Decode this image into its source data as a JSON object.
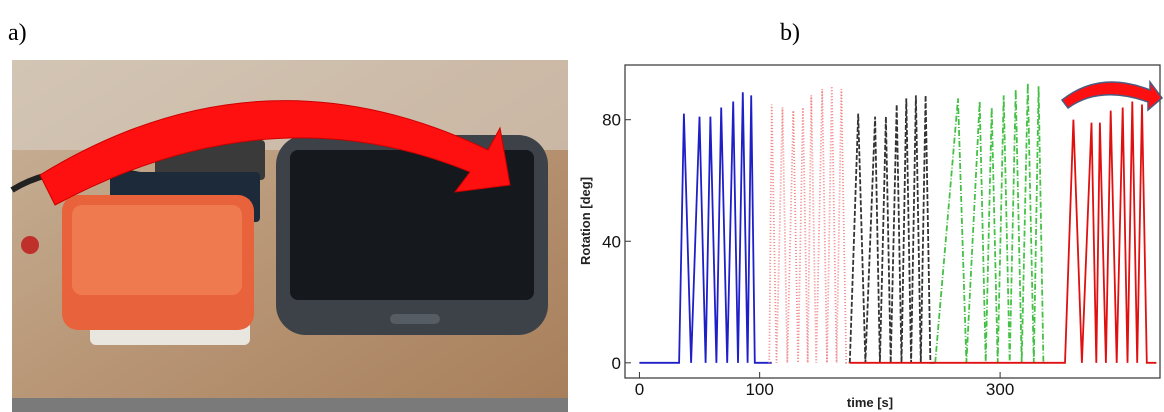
{
  "panel_labels": [
    "a)",
    "b)"
  ],
  "chart_data": {
    "type": "line",
    "xlabel": "time [s]",
    "ylabel": "Rotation [deg]",
    "xlim": [
      -12,
      433
    ],
    "ylim": [
      -5,
      98
    ],
    "xticks": [
      0,
      100,
      300
    ],
    "yticks": [
      0,
      40,
      80
    ],
    "grid": false,
    "series": [
      {
        "color": "#1f1fc8",
        "dash": "none",
        "x": [
          0,
          33,
          37,
          43,
          50,
          55,
          59,
          64,
          68,
          73,
          78,
          82,
          86,
          90,
          93,
          96,
          110
        ],
        "values": [
          0,
          0,
          82,
          0,
          81,
          0,
          81,
          0,
          84,
          0,
          86,
          0,
          89,
          0,
          88,
          0,
          0
        ]
      },
      {
        "color": "#f08080",
        "dash": "1,2",
        "x": [
          108,
          110,
          114,
          119,
          123,
          128,
          132,
          136,
          140,
          143,
          147,
          152,
          156,
          160,
          164,
          168,
          172,
          175
        ],
        "values": [
          0,
          85,
          0,
          84,
          0,
          83,
          0,
          84,
          0,
          88,
          0,
          90,
          0,
          91,
          0,
          90,
          0,
          0
        ]
      },
      {
        "color": "#333333",
        "dash": "5,2",
        "x": [
          175,
          182,
          188,
          196,
          200,
          205,
          209,
          214,
          218,
          222,
          226,
          230,
          234,
          238,
          242,
          246
        ],
        "values": [
          0,
          82,
          0,
          81,
          0,
          81,
          0,
          85,
          0,
          87,
          0,
          88,
          0,
          88,
          0,
          0
        ]
      },
      {
        "color": "#44c044",
        "dash": "6,2,1,2",
        "x": [
          246,
          265,
          272,
          283,
          288,
          293,
          298,
          303,
          308,
          313,
          318,
          323,
          328,
          332,
          336,
          340
        ],
        "values": [
          0,
          87,
          0,
          86,
          0,
          84,
          0,
          88,
          0,
          90,
          0,
          92,
          0,
          91,
          0,
          0
        ]
      },
      {
        "color": "#e01010",
        "dash": "none",
        "x": [
          175,
          354,
          361,
          368,
          376,
          380,
          383,
          388,
          392,
          397,
          402,
          406,
          410,
          414,
          418,
          422,
          430
        ],
        "values": [
          0,
          0,
          80,
          0,
          79,
          0,
          79,
          0,
          83,
          0,
          84,
          0,
          86,
          0,
          85,
          0,
          0
        ]
      }
    ]
  }
}
